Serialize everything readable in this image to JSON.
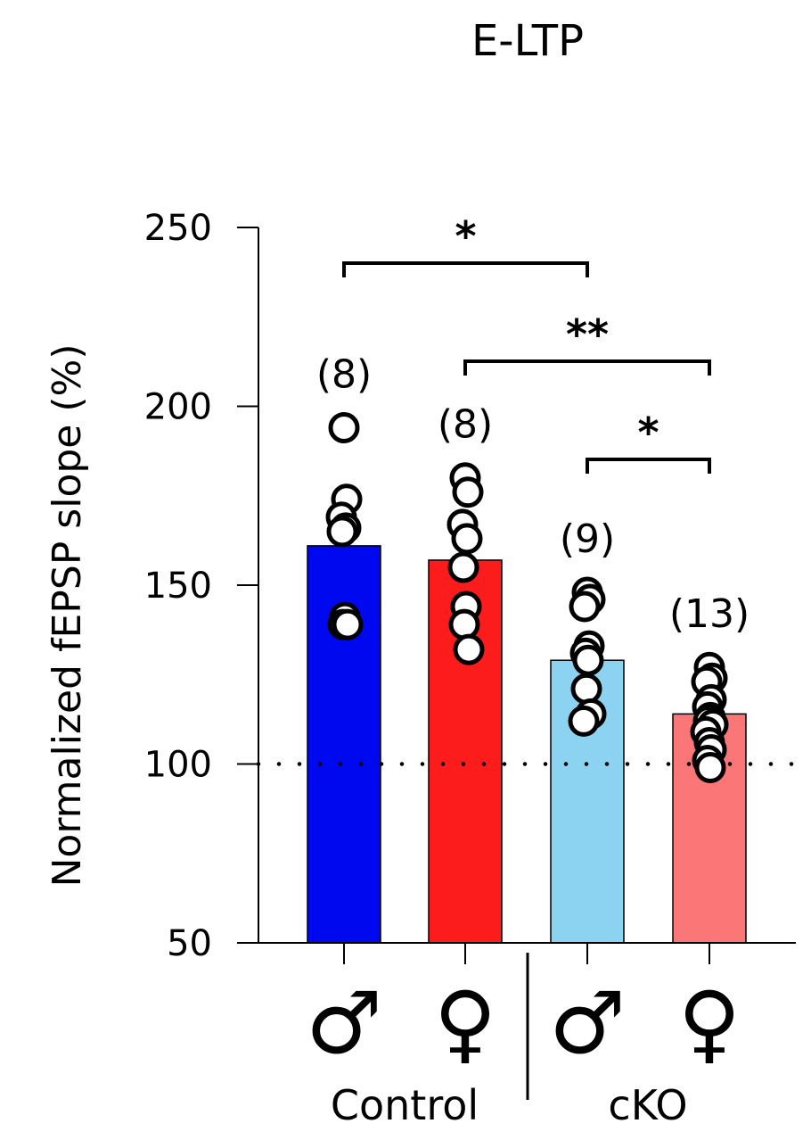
{
  "chart_data": {
    "type": "bar",
    "title": "E-LTP",
    "ylabel": "Normalized fEPSP slope (%)",
    "ylim": [
      50,
      250
    ],
    "yticks": [
      50,
      100,
      150,
      200,
      250
    ],
    "reference_line": 100,
    "categories": [
      "♂",
      "♀",
      "♂",
      "♀"
    ],
    "groups": [
      {
        "label": "Control",
        "bars": [
          0,
          1
        ]
      },
      {
        "label": "cKO",
        "bars": [
          2,
          3
        ]
      }
    ],
    "bars": [
      {
        "sex": "♂",
        "group": "Control",
        "value": 161,
        "n_label": "(8)",
        "color": "#0008f0",
        "points": [
          194,
          174,
          169,
          166,
          165,
          141,
          139,
          139
        ]
      },
      {
        "sex": "♀",
        "group": "Control",
        "value": 157,
        "n_label": "(8)",
        "color": "#fc1c1c",
        "points": [
          180,
          176,
          167,
          163,
          155,
          144,
          139,
          132
        ]
      },
      {
        "sex": "♂",
        "group": "cKO",
        "value": 129,
        "n_label": "(9)",
        "color": "#8bd3f1",
        "points": [
          148,
          146,
          144,
          133,
          131,
          129,
          121,
          114,
          112
        ]
      },
      {
        "sex": "♀",
        "group": "cKO",
        "value": 114,
        "n_label": "(13)",
        "color": "#fb7676",
        "points": [
          127,
          124,
          123,
          118,
          116,
          113,
          112,
          111,
          109,
          106,
          104,
          101,
          99
        ]
      }
    ],
    "significance": [
      {
        "from": 0,
        "to": 2,
        "label": "*"
      },
      {
        "from": 1,
        "to": 3,
        "label": "**"
      },
      {
        "from": 2,
        "to": 3,
        "label": "*"
      }
    ]
  }
}
